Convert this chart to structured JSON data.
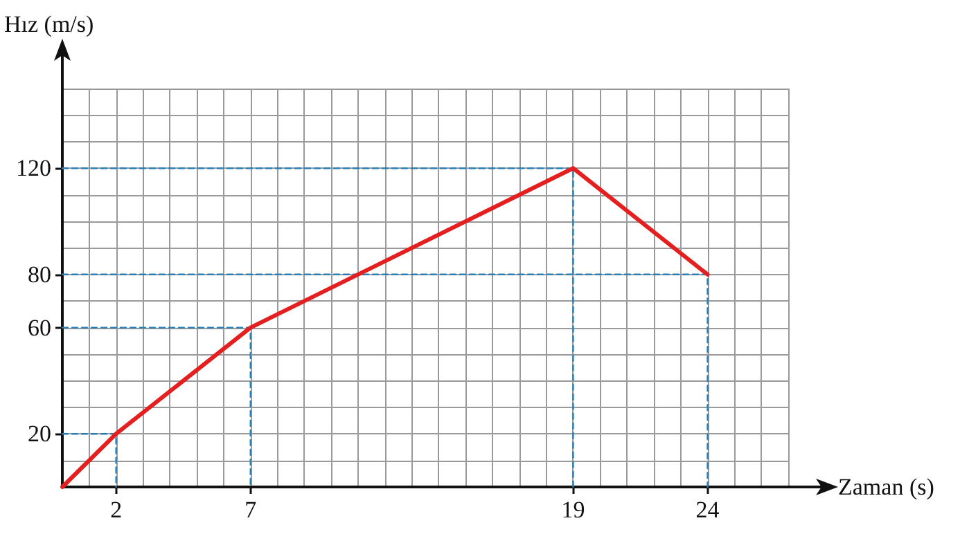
{
  "chart_data": {
    "type": "line",
    "xlabel": "Zaman (s)",
    "ylabel": "Hız (m/s)",
    "x": [
      0,
      2,
      7,
      19,
      24
    ],
    "series": [
      {
        "color": "#e3201f",
        "values": [
          0,
          20,
          60,
          120,
          80
        ]
      },
      {
        "color": "#2a7fb5",
        "line_style": "dashed",
        "x": [
          0,
          2,
          2
        ],
        "values": [
          20,
          20,
          0
        ]
      },
      {
        "color": "#2a7fb5",
        "line_style": "dashed",
        "x": [
          0,
          7,
          7
        ],
        "values": [
          60,
          60,
          0
        ]
      },
      {
        "color": "#2a7fb5",
        "line_style": "dashed",
        "x": [
          0,
          19,
          19
        ],
        "values": [
          120,
          120,
          0
        ]
      },
      {
        "color": "#2a7fb5",
        "line_style": "dashed",
        "x": [
          0,
          24,
          24
        ],
        "values": [
          80,
          80,
          0
        ]
      }
    ],
    "xlim": [
      0,
      27
    ],
    "xticks": [
      2,
      7,
      19,
      24
    ],
    "ylim": [
      0,
      150
    ],
    "yticks": [
      20,
      60,
      80,
      120
    ],
    "grid": true,
    "marker": "none",
    "line_style": "solid"
  }
}
